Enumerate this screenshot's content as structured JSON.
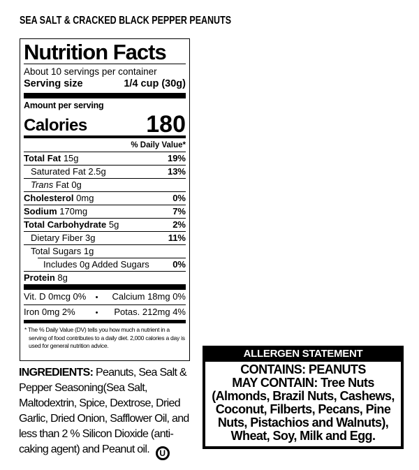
{
  "colors": {
    "ink": "#000000",
    "paper": "#ffffff"
  },
  "product_title": "SEA SALT & CRACKED BLACK PEPPER PEANUTS",
  "nutrition_facts": {
    "title": "Nutrition Facts",
    "servings_per_container": "About 10 servings per container",
    "serving_size": {
      "label": "Serving size",
      "value": "1/4 cup (30g)"
    },
    "amount_per_serving_label": "Amount per serving",
    "calories": {
      "label": "Calories",
      "value": "180"
    },
    "daily_value_header": "% Daily Value*",
    "nutrients": [
      {
        "label": "Total Fat",
        "amount": "15g",
        "dv": "19%"
      },
      {
        "label": "Saturated Fat",
        "amount": "2.5g",
        "dv": "13%"
      },
      {
        "label_italic": "Trans",
        "label": "Fat",
        "amount": "0g",
        "dv": ""
      },
      {
        "label": "Cholesterol",
        "amount": "0mg",
        "dv": "0%"
      },
      {
        "label": "Sodium",
        "amount": "170mg",
        "dv": "7%"
      },
      {
        "label": "Total Carbohydrate",
        "amount": "5g",
        "dv": "2%"
      },
      {
        "label": "Dietary Fiber",
        "amount": "3g",
        "dv": "11%"
      },
      {
        "label": "Total Sugars",
        "amount": "1g",
        "dv": ""
      },
      {
        "label": "Includes 0g Added Sugars",
        "amount": "",
        "dv": "0%"
      },
      {
        "label": "Protein",
        "amount": "8g",
        "dv": ""
      }
    ],
    "micronutrients": {
      "bullet": "•",
      "rows": [
        {
          "left": "Vit. D 0mcg 0%",
          "right": "Calcium 18mg 0%"
        },
        {
          "left": "Iron 0mg 2%",
          "right": "Potas. 212mg 4%"
        }
      ]
    },
    "footnote": "* The % Daily Value (DV) tells you how much a nutrient in a serving of food contributes to a daily diet. 2,000 calories a day is used for general nutrition advice."
  },
  "ingredients": {
    "label": "INGREDIENTS:",
    "text": "Peanuts, Sea Salt & Pepper Seasoning(Sea Salt, Maltodextrin, Spice, Dextrose, Dried Garlic, Dried Onion, Safflower Oil, and less than 2 % Silicon Dioxide (anti-caking agent) and Peanut oil.",
    "kosher_symbol": "U"
  },
  "allergen": {
    "header": "ALLERGEN STATEMENT",
    "contains": "CONTAINS: PEANUTS",
    "may_contain": "MAY CONTAIN: Tree Nuts (Almonds, Brazil Nuts, Cashews, Coconut, Filberts, Pecans, Pine Nuts, Pistachios and Walnuts), Wheat, Soy, Milk and Egg."
  }
}
